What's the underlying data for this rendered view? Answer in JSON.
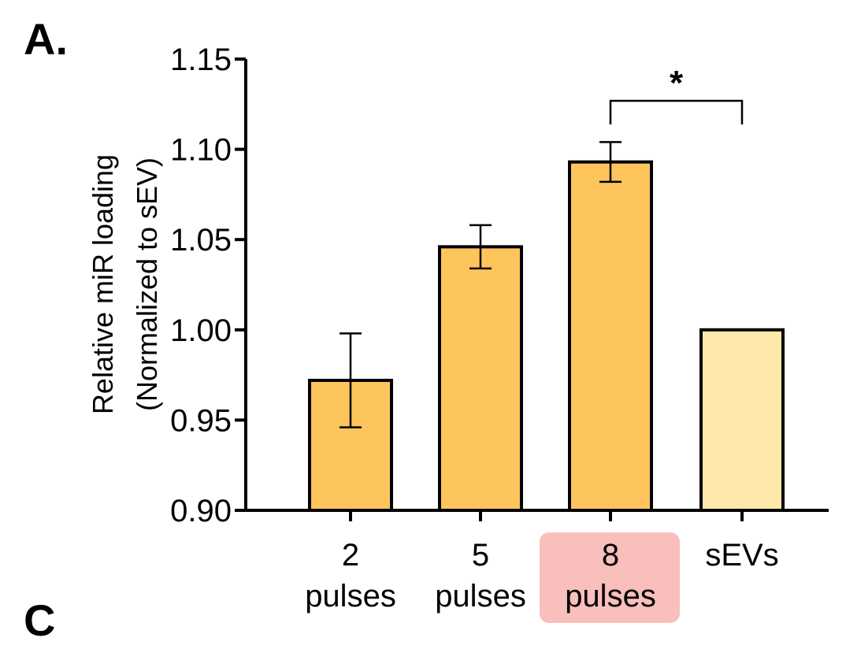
{
  "panel_label": "A.",
  "next_panel_label": "C",
  "colors": {
    "bar": "#fdc55c",
    "bar_light": "#fde7a9",
    "highlight": "#f8bfbc",
    "stroke": "#000000"
  },
  "chart_data": {
    "type": "bar",
    "title": "",
    "xlabel": "",
    "ylabel_lines": [
      "Relative miR loading",
      "(Normalized to sEV)"
    ],
    "ylim": [
      0.9,
      1.15
    ],
    "yticks": [
      "0.90",
      "0.95",
      "1.00",
      "1.05",
      "1.10",
      "1.15"
    ],
    "categories": [
      {
        "line1": "2",
        "line2": "pulses"
      },
      {
        "line1": "5",
        "line2": "pulses"
      },
      {
        "line1": "8",
        "line2": "pulses"
      },
      {
        "line1": "sEVs",
        "line2": ""
      }
    ],
    "values": [
      0.972,
      1.046,
      1.093,
      1.0
    ],
    "errors": [
      0.026,
      0.012,
      0.011,
      0.0
    ],
    "bar_colors": [
      "#fdc55c",
      "#fdc55c",
      "#fdc55c",
      "#fde7a9"
    ],
    "highlighted_category_index": 2,
    "significance": {
      "from": 2,
      "to": 3,
      "label": "*"
    },
    "grid": false,
    "legend": "none"
  }
}
